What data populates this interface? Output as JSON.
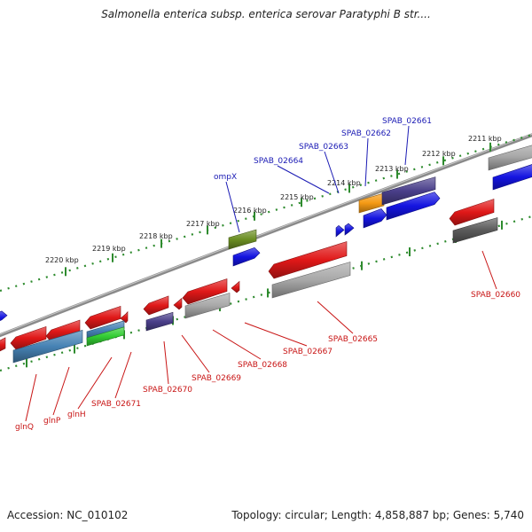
{
  "title": "Salmonella enterica subsp. enterica serovar Paratyphi B str....",
  "footer": {
    "accession": "Accession: NC_010102",
    "stats": "Topology: circular; Length: 4,858,887 bp; Genes: 5,740"
  },
  "colors": {
    "backbone": "#8a8a8a",
    "ticks": "#2e8b2e",
    "label_forward": "#1a1ab4",
    "label_reverse": "#c81414",
    "red": "#e01818",
    "blue": "#1414e0",
    "purple": "#4a3f8a",
    "grey": "#a8a8a8",
    "dark_grey": "#5a5a5a",
    "olive": "#6b8e23",
    "orange": "#f59a14",
    "steel": "#4682b4",
    "green": "#32cd32"
  },
  "scale_labels": [
    "2220 kbp",
    "2219 kbp",
    "2218 kbp",
    "2217 kbp",
    "2216 kbp",
    "2215 kbp",
    "2214 kbp",
    "2213 kbp",
    "2212 kbp",
    "2211 kbp"
  ],
  "forward_labels": [
    "ompX",
    "SPAB_02664",
    "SPAB_02663",
    "SPAB_02662",
    "SPAB_02661"
  ],
  "reverse_labels": [
    "glnQ",
    "glnP",
    "glnH",
    "SPAB_02671",
    "SPAB_02670",
    "SPAB_02669",
    "SPAB_02668",
    "SPAB_02667",
    "SPAB_02665",
    "SPAB_02660"
  ],
  "feature_colors": [
    "red",
    "red",
    "red",
    "red",
    "red",
    "red",
    "red",
    "blue",
    "blue",
    "blue",
    "blue",
    "purple",
    "purple",
    "grey",
    "grey",
    "grey",
    "dark_grey",
    "olive",
    "orange",
    "steel",
    "steel",
    "green"
  ]
}
